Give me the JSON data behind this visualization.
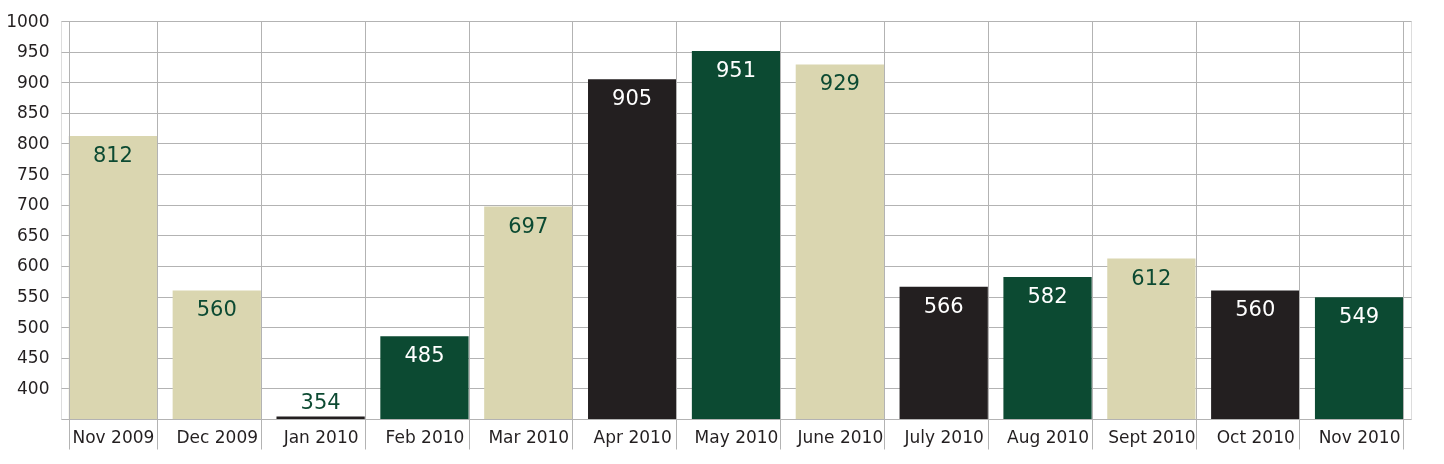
{
  "chart_data": {
    "type": "bar",
    "categories": [
      "Nov 2009",
      "Dec 2009",
      "Jan 2010",
      "Feb 2010",
      "Mar 2010",
      "Apr 2010",
      "May 2010",
      "June 2010",
      "July 2010",
      "Aug 2010",
      "Sept 2010",
      "Oct 2010",
      "Nov 2010"
    ],
    "values": [
      812,
      560,
      354,
      485,
      697,
      905,
      951,
      929,
      566,
      582,
      612,
      560,
      549
    ],
    "colors": [
      "#dad6b0",
      "#dad6b0",
      "#231f20",
      "#0c4a32",
      "#dad6b0",
      "#231f20",
      "#0c4a32",
      "#dad6b0",
      "#231f20",
      "#0c4a32",
      "#dad6b0",
      "#231f20",
      "#0c4a32"
    ],
    "ylim": [
      350,
      1000
    ],
    "yticks": [
      400,
      450,
      500,
      550,
      600,
      650,
      700,
      750,
      800,
      850,
      900,
      950,
      1000
    ],
    "grid": true,
    "data_labels": true
  }
}
